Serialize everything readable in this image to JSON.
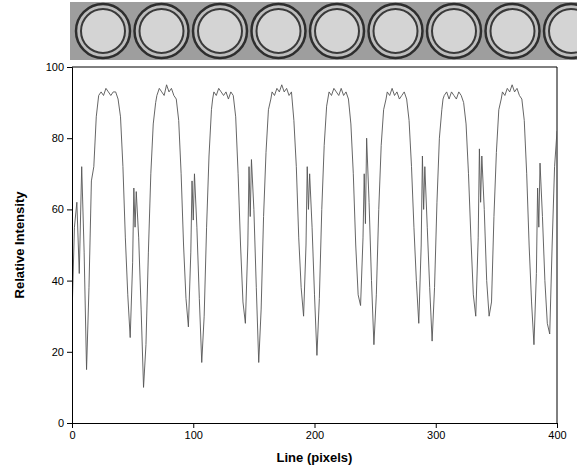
{
  "chart_data": {
    "type": "line",
    "x_label": "Line (pixels)",
    "y_label": "Relative Intensity",
    "x": [
      0,
      2,
      4,
      6,
      8,
      10,
      12,
      14,
      16,
      18,
      20,
      22,
      24,
      26,
      28,
      30,
      32,
      34,
      36,
      38,
      40,
      42,
      44,
      46,
      48,
      50,
      51,
      52,
      53,
      55,
      57,
      59,
      61,
      63,
      65,
      67,
      69,
      70,
      72,
      74,
      76,
      78,
      80,
      82,
      84,
      86,
      88,
      90,
      92,
      94,
      96,
      98,
      99,
      100,
      101,
      103,
      105,
      107,
      109,
      111,
      113,
      115,
      116,
      117,
      119,
      121,
      123,
      125,
      127,
      129,
      131,
      133,
      135,
      137,
      139,
      141,
      143,
      145,
      146,
      147,
      148,
      150,
      152,
      154,
      156,
      158,
      160,
      162,
      164,
      165,
      167,
      169,
      171,
      173,
      175,
      177,
      179,
      181,
      183,
      185,
      187,
      189,
      191,
      193,
      194,
      195,
      196,
      198,
      200,
      202,
      204,
      206,
      208,
      210,
      211,
      212,
      214,
      216,
      218,
      220,
      222,
      224,
      226,
      228,
      230,
      232,
      234,
      236,
      238,
      240,
      241,
      242,
      243,
      245,
      247,
      249,
      251,
      253,
      255,
      257,
      259,
      260,
      262,
      264,
      266,
      268,
      270,
      272,
      274,
      276,
      278,
      280,
      282,
      284,
      286,
      288,
      289,
      290,
      291,
      293,
      295,
      297,
      299,
      301,
      303,
      305,
      306,
      307,
      309,
      311,
      313,
      315,
      317,
      319,
      321,
      323,
      325,
      327,
      329,
      331,
      333,
      335,
      336,
      337,
      338,
      340,
      342,
      344,
      346,
      348,
      350,
      352,
      354,
      355,
      357,
      359,
      361,
      363,
      365,
      367,
      369,
      371,
      373,
      375,
      377,
      379,
      381,
      383,
      384,
      385,
      386,
      388,
      390,
      392,
      394,
      396,
      398,
      400
    ],
    "values": [
      30,
      55,
      62,
      42,
      72,
      48,
      15,
      38,
      68,
      72,
      86,
      92,
      93,
      92,
      94,
      93,
      92,
      93,
      93,
      91,
      86,
      72,
      52,
      36,
      24,
      45,
      66,
      55,
      65,
      52,
      32,
      10,
      22,
      48,
      70,
      84,
      90,
      92,
      94,
      93,
      92,
      95,
      93,
      94,
      92,
      91,
      85,
      70,
      50,
      35,
      27,
      48,
      68,
      57,
      70,
      55,
      35,
      17,
      30,
      55,
      75,
      88,
      91,
      93,
      92,
      94,
      93,
      92,
      93,
      91,
      93,
      92,
      86,
      70,
      50,
      34,
      28,
      50,
      72,
      58,
      74,
      60,
      38,
      17,
      32,
      58,
      76,
      88,
      91,
      93,
      92,
      94,
      93,
      95,
      93,
      94,
      92,
      93,
      85,
      72,
      52,
      38,
      30,
      50,
      72,
      60,
      70,
      55,
      36,
      19,
      35,
      60,
      78,
      89,
      91,
      93,
      92,
      94,
      93,
      92,
      94,
      92,
      93,
      91,
      84,
      70,
      50,
      36,
      33,
      52,
      70,
      56,
      80,
      62,
      40,
      22,
      36,
      60,
      78,
      88,
      91,
      93,
      92,
      94,
      92,
      93,
      91,
      92,
      93,
      91,
      85,
      72,
      55,
      40,
      28,
      50,
      75,
      60,
      72,
      55,
      38,
      23,
      38,
      62,
      80,
      88,
      91,
      92,
      93,
      91,
      93,
      92,
      91,
      93,
      92,
      90,
      84,
      70,
      52,
      36,
      30,
      52,
      77,
      62,
      75,
      60,
      40,
      30,
      34,
      58,
      76,
      88,
      91,
      93,
      92,
      94,
      93,
      95,
      93,
      94,
      92,
      91,
      85,
      70,
      50,
      34,
      22,
      42,
      66,
      55,
      73,
      58,
      40,
      28,
      25,
      50,
      72,
      82
    ],
    "color": "#555555",
    "xlim": [
      0,
      400
    ],
    "ylim": [
      0,
      100
    ],
    "xticks": [
      0,
      100,
      200,
      300,
      400
    ],
    "yticks": [
      0,
      20,
      40,
      60,
      80,
      100
    ],
    "grid": false
  }
}
